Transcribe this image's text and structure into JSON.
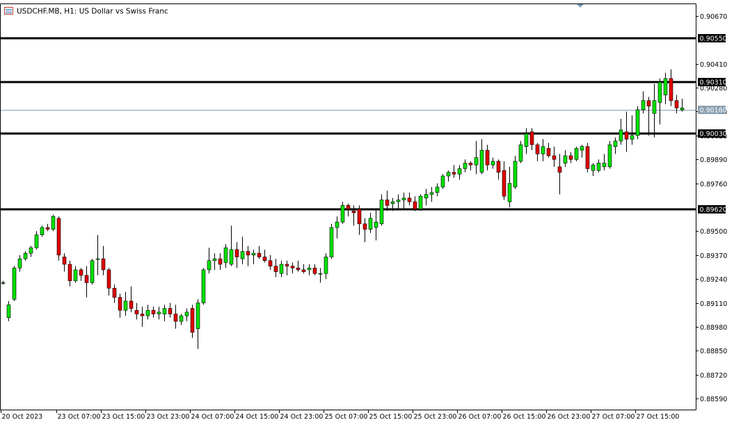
{
  "header": {
    "title": "USDCHF.MB, H1:  US Dollar vs Swiss Franc",
    "icon": "chart-window-icon"
  },
  "colors": {
    "bull": "#00e000",
    "bear": "#e00000",
    "wick": "#000000",
    "level_line": "#000000",
    "current_line": "#8aa0b0",
    "current_label_bg": "#8aa0b0",
    "text": "#000000",
    "background": "#ffffff"
  },
  "chart_data": {
    "type": "candlestick",
    "title": "USDCHF.MB, H1:  US Dollar vs Swiss Franc",
    "ylim": [
      0.8853,
      0.90734
    ],
    "y_ticks": [
      0.9067,
      0.9041,
      0.9028,
      0.9015,
      0.9002,
      0.8989,
      0.8976,
      0.895,
      0.8937,
      0.8924,
      0.8911,
      0.8898,
      0.8885,
      0.8872,
      0.8859
    ],
    "y_tick_labels": [
      "0.90670",
      "0.90410",
      "0.90280",
      "0.90150",
      "0.90020",
      "0.89890",
      "0.89760",
      "0.89500",
      "0.89370",
      "0.89240",
      "0.89110",
      "0.88980",
      "0.88850",
      "0.88720",
      "0.88590"
    ],
    "x_tick_labels": [
      "20 Oct 2023",
      "23 Oct 07:00",
      "23 Oct 15:00",
      "23 Oct 23:00",
      "24 Oct 07:00",
      "24 Oct 15:00",
      "24 Oct 23:00",
      "25 Oct 07:00",
      "25 Oct 15:00",
      "25 Oct 23:00",
      "26 Oct 07:00",
      "26 Oct 15:00",
      "26 Oct 23:00",
      "27 Oct 07:00",
      "27 Oct 15:00"
    ],
    "x_tick_index": [
      0,
      10,
      18,
      26,
      34,
      42,
      50,
      58,
      66,
      74,
      82,
      90,
      98,
      106,
      114
    ],
    "levels": [
      {
        "value": 0.9055,
        "label": "0.90550"
      },
      {
        "value": 0.9031,
        "label": "0.90310"
      },
      {
        "value": 0.9003,
        "label": "0.90030"
      },
      {
        "value": 0.8962,
        "label": "0.89620"
      }
    ],
    "current_price": {
      "value": 0.9016,
      "label": "0.90160"
    },
    "grid": false,
    "candles": [
      [
        0.8922,
        0.8923,
        0.8921,
        0.8922
      ],
      [
        0.8903,
        0.8912,
        0.8901,
        0.891
      ],
      [
        0.8913,
        0.8931,
        0.8912,
        0.893
      ],
      [
        0.893,
        0.8937,
        0.8928,
        0.8935
      ],
      [
        0.8935,
        0.8939,
        0.8934,
        0.8938
      ],
      [
        0.8938,
        0.8942,
        0.8936,
        0.8941
      ],
      [
        0.8941,
        0.895,
        0.894,
        0.8948
      ],
      [
        0.8948,
        0.8953,
        0.8947,
        0.8952
      ],
      [
        0.8952,
        0.8954,
        0.895,
        0.8951
      ],
      [
        0.8951,
        0.8959,
        0.895,
        0.8958
      ],
      [
        0.8957,
        0.8958,
        0.8934,
        0.8937
      ],
      [
        0.8936,
        0.8938,
        0.8928,
        0.8932
      ],
      [
        0.8932,
        0.8934,
        0.892,
        0.8923
      ],
      [
        0.8923,
        0.8931,
        0.8922,
        0.8929
      ],
      [
        0.8929,
        0.893,
        0.8923,
        0.8926
      ],
      [
        0.8926,
        0.8931,
        0.8914,
        0.8922
      ],
      [
        0.8922,
        0.8935,
        0.8921,
        0.8934
      ],
      [
        0.8935,
        0.8948,
        0.8926,
        0.8935
      ],
      [
        0.8935,
        0.8942,
        0.8926,
        0.8929
      ],
      [
        0.8929,
        0.893,
        0.8915,
        0.8919
      ],
      [
        0.8919,
        0.8921,
        0.8911,
        0.8914
      ],
      [
        0.8914,
        0.8916,
        0.8903,
        0.8907
      ],
      [
        0.8907,
        0.8917,
        0.8904,
        0.8912
      ],
      [
        0.8912,
        0.892,
        0.8906,
        0.8908
      ],
      [
        0.8907,
        0.8911,
        0.8902,
        0.8905
      ],
      [
        0.8905,
        0.8909,
        0.8898,
        0.8904
      ],
      [
        0.8904,
        0.891,
        0.8902,
        0.8907
      ],
      [
        0.8907,
        0.8909,
        0.8903,
        0.8905
      ],
      [
        0.8905,
        0.8909,
        0.8902,
        0.8906
      ],
      [
        0.8905,
        0.891,
        0.8901,
        0.8908
      ],
      [
        0.8908,
        0.8911,
        0.8903,
        0.8905
      ],
      [
        0.8905,
        0.891,
        0.8897,
        0.8901
      ],
      [
        0.8901,
        0.8905,
        0.8899,
        0.8904
      ],
      [
        0.8904,
        0.8908,
        0.8901,
        0.8906
      ],
      [
        0.8908,
        0.891,
        0.8892,
        0.8895
      ],
      [
        0.8897,
        0.8913,
        0.8886,
        0.8911
      ],
      [
        0.8911,
        0.893,
        0.891,
        0.8929
      ],
      [
        0.8929,
        0.8941,
        0.8927,
        0.8934
      ],
      [
        0.8934,
        0.8938,
        0.8929,
        0.8935
      ],
      [
        0.8935,
        0.8938,
        0.8929,
        0.8932
      ],
      [
        0.8933,
        0.8943,
        0.893,
        0.8941
      ],
      [
        0.8932,
        0.8953,
        0.8931,
        0.894
      ],
      [
        0.894,
        0.8944,
        0.893,
        0.8936
      ],
      [
        0.8935,
        0.8947,
        0.8932,
        0.8939
      ],
      [
        0.8939,
        0.8942,
        0.8931,
        0.8937
      ],
      [
        0.8937,
        0.894,
        0.8932,
        0.8938
      ],
      [
        0.8938,
        0.8942,
        0.8935,
        0.8936
      ],
      [
        0.8936,
        0.894,
        0.8933,
        0.8934
      ],
      [
        0.8934,
        0.8937,
        0.8929,
        0.8931
      ],
      [
        0.8931,
        0.8935,
        0.8925,
        0.8928
      ],
      [
        0.8927,
        0.8934,
        0.8925,
        0.8932
      ],
      [
        0.8932,
        0.8934,
        0.8926,
        0.8931
      ],
      [
        0.8931,
        0.8933,
        0.8927,
        0.893
      ],
      [
        0.893,
        0.8934,
        0.8928,
        0.8929
      ],
      [
        0.8929,
        0.8932,
        0.8927,
        0.8928
      ],
      [
        0.8929,
        0.8932,
        0.8926,
        0.893
      ],
      [
        0.893,
        0.8932,
        0.8926,
        0.8927
      ],
      [
        0.8927,
        0.893,
        0.8922,
        0.8927
      ],
      [
        0.8927,
        0.8938,
        0.8924,
        0.8936
      ],
      [
        0.8936,
        0.8954,
        0.8935,
        0.8952
      ],
      [
        0.8952,
        0.8958,
        0.8946,
        0.8955
      ],
      [
        0.8955,
        0.8966,
        0.8954,
        0.8964
      ],
      [
        0.8964,
        0.8965,
        0.8958,
        0.8962
      ],
      [
        0.8961,
        0.8964,
        0.8953,
        0.896
      ],
      [
        0.8962,
        0.8964,
        0.8948,
        0.8954
      ],
      [
        0.8954,
        0.8957,
        0.8944,
        0.8951
      ],
      [
        0.8951,
        0.896,
        0.8949,
        0.8957
      ],
      [
        0.8952,
        0.8962,
        0.8945,
        0.8955
      ],
      [
        0.8954,
        0.897,
        0.8953,
        0.8967
      ],
      [
        0.8967,
        0.8972,
        0.8961,
        0.8964
      ],
      [
        0.8965,
        0.8968,
        0.8961,
        0.8966
      ],
      [
        0.8966,
        0.897,
        0.8962,
        0.8967
      ],
      [
        0.8967,
        0.8971,
        0.8962,
        0.8968
      ],
      [
        0.8968,
        0.8971,
        0.8964,
        0.8966
      ],
      [
        0.8966,
        0.8969,
        0.8961,
        0.8962
      ],
      [
        0.8962,
        0.897,
        0.8961,
        0.8969
      ],
      [
        0.8968,
        0.8973,
        0.8964,
        0.897
      ],
      [
        0.897,
        0.8974,
        0.8966,
        0.8971
      ],
      [
        0.8971,
        0.8976,
        0.8969,
        0.8974
      ],
      [
        0.8974,
        0.8981,
        0.8973,
        0.898
      ],
      [
        0.898,
        0.8983,
        0.8977,
        0.8982
      ],
      [
        0.8982,
        0.8986,
        0.8979,
        0.8981
      ],
      [
        0.8981,
        0.8986,
        0.8978,
        0.8984
      ],
      [
        0.8984,
        0.8989,
        0.8982,
        0.8987
      ],
      [
        0.8987,
        0.8988,
        0.8983,
        0.8986
      ],
      [
        0.8986,
        0.8999,
        0.8981,
        0.899
      ],
      [
        0.8982,
        0.9,
        0.8981,
        0.8994
      ],
      [
        0.8994,
        0.8997,
        0.8983,
        0.8986
      ],
      [
        0.8986,
        0.899,
        0.8984,
        0.8988
      ],
      [
        0.8988,
        0.8989,
        0.8978,
        0.8982
      ],
      [
        0.8983,
        0.8988,
        0.8967,
        0.8969
      ],
      [
        0.8966,
        0.8985,
        0.8963,
        0.8976
      ],
      [
        0.8974,
        0.8991,
        0.8973,
        0.8988
      ],
      [
        0.8988,
        0.8999,
        0.8987,
        0.8997
      ],
      [
        0.8996,
        0.9006,
        0.8992,
        0.9003
      ],
      [
        0.9004,
        0.9006,
        0.8994,
        0.8997
      ],
      [
        0.8997,
        0.8998,
        0.8988,
        0.8992
      ],
      [
        0.8992,
        0.9,
        0.8988,
        0.8996
      ],
      [
        0.8995,
        0.8998,
        0.899,
        0.8991
      ],
      [
        0.8991,
        0.8996,
        0.8985,
        0.8989
      ],
      [
        0.8985,
        0.8992,
        0.897,
        0.8982
      ],
      [
        0.8987,
        0.8994,
        0.8985,
        0.8991
      ],
      [
        0.8991,
        0.8993,
        0.8987,
        0.8989
      ],
      [
        0.8989,
        0.8996,
        0.8988,
        0.8995
      ],
      [
        0.8994,
        0.8997,
        0.899,
        0.8996
      ],
      [
        0.8996,
        0.8998,
        0.8982,
        0.8984
      ],
      [
        0.8983,
        0.8987,
        0.898,
        0.8986
      ],
      [
        0.8983,
        0.8989,
        0.8982,
        0.8987
      ],
      [
        0.8985,
        0.8992,
        0.8983,
        0.8987
      ],
      [
        0.8985,
        0.8999,
        0.8984,
        0.8997
      ],
      [
        0.8996,
        0.9001,
        0.8992,
        0.8999
      ],
      [
        0.8999,
        0.9011,
        0.8997,
        0.9005
      ],
      [
        0.9004,
        0.9015,
        0.8993,
        0.9
      ],
      [
        0.9,
        0.9013,
        0.8997,
        0.9002
      ],
      [
        0.9002,
        0.9018,
        0.9,
        0.9016
      ],
      [
        0.9016,
        0.9026,
        0.9014,
        0.9021
      ],
      [
        0.9021,
        0.9023,
        0.9002,
        0.9018
      ],
      [
        0.9014,
        0.903,
        0.9001,
        0.9021
      ],
      [
        0.902,
        0.9033,
        0.9008,
        0.9031
      ],
      [
        0.9024,
        0.9036,
        0.9019,
        0.9033
      ],
      [
        0.9033,
        0.9038,
        0.9018,
        0.9021
      ],
      [
        0.9021,
        0.9024,
        0.9014,
        0.9017
      ],
      [
        0.9016,
        0.9022,
        0.9015,
        0.9017
      ]
    ]
  }
}
